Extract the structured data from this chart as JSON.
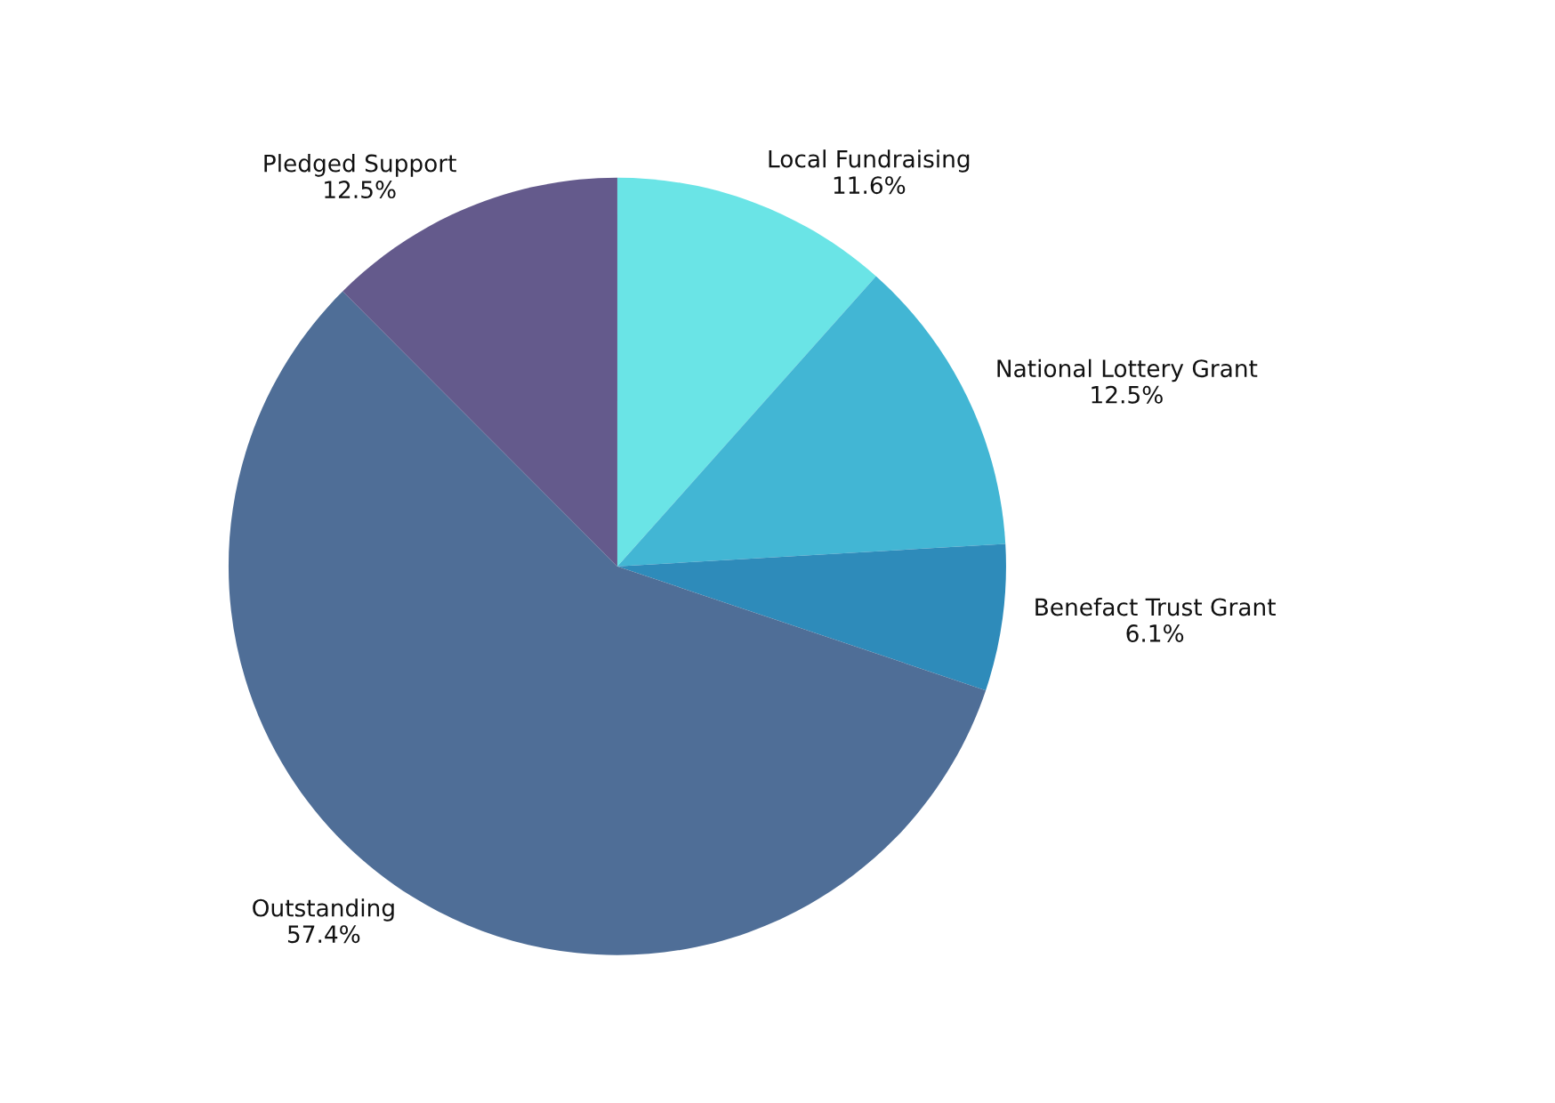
{
  "chart_data": {
    "type": "pie",
    "categories": [
      "Local Fundraising",
      "National Lottery Grant",
      "Benefact Trust Grant",
      "Outstanding",
      "Pledged Support"
    ],
    "values": [
      11.6,
      12.5,
      6.1,
      57.4,
      12.5
    ],
    "value_labels": [
      "11.6%",
      "12.5%",
      "6.1%",
      "57.4%",
      "12.5%"
    ],
    "colors": [
      "#6ae4e6",
      "#42b6d4",
      "#2e8bba",
      "#4f6e97",
      "#645a8c"
    ],
    "legend": false
  }
}
